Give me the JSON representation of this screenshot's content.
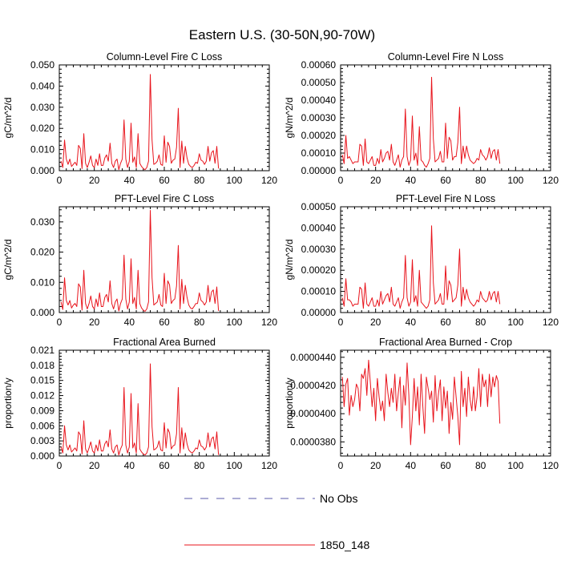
{
  "figure": {
    "title": "Eastern U.S. (30-50N,90-70W)",
    "legend": [
      {
        "label": "No Obs",
        "style": "dashed",
        "color": "#5a5aa8"
      },
      {
        "label": "1850_148",
        "style": "solid",
        "color": "#e8141c"
      }
    ]
  },
  "chart_data": [
    {
      "type": "line",
      "title": "Column-Level Fire C Loss",
      "ylabel": "gC/m^2/d",
      "xlim": [
        0,
        120
      ],
      "ylim": [
        0,
        0.05
      ],
      "xticks": [
        "0",
        "20",
        "40",
        "60",
        "80",
        "100",
        "120"
      ],
      "yticks": [
        "0.000",
        "0.010",
        "0.020",
        "0.030",
        "0.040",
        "0.050"
      ],
      "series": [
        {
          "color": "#e8141c",
          "values": [
            0.0045,
            0.0015,
            0.0145,
            0.0055,
            0.003,
            0.0055,
            0.002,
            0.003,
            0.004,
            0.0025,
            0.012,
            0.0105,
            0.001,
            0.0175,
            0.0035,
            0.0015,
            0.004,
            0.007,
            0.0025,
            0.0015,
            0.0055,
            0.0025,
            0.008,
            0.0025,
            0.0025,
            0.006,
            0.0075,
            0.0045,
            0.013,
            0.0035,
            0.0015,
            0.0045,
            0.0055,
            0.0005,
            0.0035,
            0.0055,
            0.024,
            0.0055,
            0.0015,
            0.0045,
            0.0225,
            0.004,
            0.0065,
            0.0015,
            0.0175,
            0.0035,
            0.002,
            0.001,
            0.0005,
            0.0015,
            0.0045,
            0.0455,
            0.0145,
            0.003,
            0.0035,
            0.0045,
            0.0075,
            0.003,
            0.0025,
            0.0165,
            0.004,
            0.0135,
            0.0115,
            0.0035,
            0.005,
            0.0055,
            0.011,
            0.0295,
            0.0015,
            0.014,
            0.0035,
            0.0115,
            0.006,
            0.003,
            0.002,
            0.0015,
            0.0025,
            0.004,
            0.0035,
            0.008,
            0.005,
            0.0045,
            0.003,
            0.0045,
            0.0115,
            0.0045,
            0.0085,
            0.0095,
            0.0035,
            0.0115,
            0.001
          ]
        }
      ]
    },
    {
      "type": "line",
      "title": "Column-Level Fire N Loss",
      "ylabel": "gN/m^2/d",
      "xlim": [
        0,
        120
      ],
      "ylim": [
        0,
        0.0006
      ],
      "xticks": [
        "0",
        "20",
        "40",
        "60",
        "80",
        "100",
        "120"
      ],
      "yticks": [
        "0.00000",
        "0.00010",
        "0.00020",
        "0.00030",
        "0.00040",
        "0.00050",
        "0.00060"
      ],
      "series": [
        {
          "color": "#e8141c",
          "values": [
            9e-05,
            4e-05,
            0.0002,
            7e-05,
            8e-05,
            6e-05,
            4e-05,
            5e-05,
            5e-05,
            5e-05,
            0.00015,
            0.00014,
            3e-05,
            0.00018,
            5e-05,
            4e-05,
            6e-05,
            8e-05,
            3e-05,
            3e-05,
            7e-05,
            4e-05,
            0.00012,
            5e-05,
            7e-05,
            0.0001,
            0.00011,
            6e-05,
            0.00015,
            5e-05,
            3e-05,
            6e-05,
            9e-05,
            2e-05,
            6e-05,
            8e-05,
            0.00035,
            8e-05,
            3e-05,
            6e-05,
            0.00031,
            6e-05,
            0.0001,
            3e-05,
            0.00025,
            6e-05,
            5e-05,
            3e-05,
            2e-05,
            4e-05,
            7e-05,
            0.00053,
            0.00018,
            5e-05,
            6e-05,
            7e-05,
            0.00011,
            5e-05,
            5e-05,
            0.00027,
            7e-05,
            0.00019,
            0.00017,
            6e-05,
            8e-05,
            8e-05,
            0.00016,
            0.00036,
            4e-05,
            0.00014,
            7e-05,
            0.00014,
            9e-05,
            6e-05,
            5e-05,
            4e-05,
            5e-05,
            7e-05,
            6e-05,
            0.00012,
            9e-05,
            8e-05,
            6e-05,
            8e-05,
            0.00013,
            7e-05,
            0.00011,
            0.00012,
            6e-05,
            0.00012,
            4e-05
          ]
        }
      ]
    },
    {
      "type": "line",
      "title": "PFT-Level Fire C Loss",
      "ylabel": "gC/m^2/d",
      "xlim": [
        0,
        120
      ],
      "ylim": [
        0,
        0.035
      ],
      "xticks": [
        "0",
        "20",
        "40",
        "60",
        "80",
        "100",
        "120"
      ],
      "yticks": [
        "0.000",
        "0.010",
        "0.020",
        "0.030"
      ],
      "series": [
        {
          "color": "#e8141c",
          "values": [
            0.0035,
            0.001,
            0.0115,
            0.004,
            0.0025,
            0.004,
            0.0015,
            0.0025,
            0.003,
            0.002,
            0.0095,
            0.0085,
            0.0008,
            0.014,
            0.003,
            0.0012,
            0.003,
            0.0055,
            0.002,
            0.0012,
            0.0045,
            0.002,
            0.0065,
            0.002,
            0.002,
            0.005,
            0.006,
            0.0035,
            0.0105,
            0.003,
            0.0012,
            0.0035,
            0.0045,
            0.0005,
            0.003,
            0.0045,
            0.019,
            0.0045,
            0.0012,
            0.0035,
            0.0178,
            0.003,
            0.005,
            0.0012,
            0.014,
            0.003,
            0.0015,
            0.0008,
            0.0004,
            0.0012,
            0.0035,
            0.0338,
            0.0115,
            0.0025,
            0.003,
            0.0035,
            0.006,
            0.0025,
            0.002,
            0.013,
            0.003,
            0.0105,
            0.0092,
            0.003,
            0.004,
            0.0045,
            0.0088,
            0.0222,
            0.0012,
            0.011,
            0.003,
            0.009,
            0.005,
            0.0025,
            0.0015,
            0.0012,
            0.002,
            0.003,
            0.003,
            0.0065,
            0.004,
            0.0035,
            0.0025,
            0.0035,
            0.009,
            0.0035,
            0.0068,
            0.0075,
            0.003,
            0.0085,
            0.0005
          ]
        }
      ]
    },
    {
      "type": "line",
      "title": "PFT-Level Fire N Loss",
      "ylabel": "gN/m^2/d",
      "xlim": [
        0,
        120
      ],
      "ylim": [
        0,
        0.0005
      ],
      "xticks": [
        "0",
        "20",
        "40",
        "60",
        "80",
        "100",
        "120"
      ],
      "yticks": [
        "0.00000",
        "0.00010",
        "0.00020",
        "0.00030",
        "0.00040",
        "0.00050"
      ],
      "series": [
        {
          "color": "#e8141c",
          "values": [
            7e-05,
            3e-05,
            0.00016,
            6e-05,
            6e-05,
            5e-05,
            3e-05,
            4e-05,
            4e-05,
            4e-05,
            0.00012,
            0.00011,
            2e-05,
            0.00014,
            4e-05,
            3e-05,
            5e-05,
            7e-05,
            3e-05,
            3e-05,
            6e-05,
            3e-05,
            0.0001,
            4e-05,
            6e-05,
            8e-05,
            9e-05,
            5e-05,
            0.00012,
            4e-05,
            3e-05,
            5e-05,
            7e-05,
            2e-05,
            5e-05,
            7e-05,
            0.00027,
            7e-05,
            3e-05,
            5e-05,
            0.00025,
            5e-05,
            8e-05,
            3e-05,
            0.0002,
            5e-05,
            4e-05,
            3e-05,
            2e-05,
            3e-05,
            6e-05,
            0.00041,
            0.00014,
            4e-05,
            5e-05,
            6e-05,
            9e-05,
            4e-05,
            4e-05,
            0.00022,
            6e-05,
            0.00015,
            0.00013,
            5e-05,
            6e-05,
            7e-05,
            0.00013,
            0.0003,
            3e-05,
            0.00012,
            6e-05,
            0.00011,
            7e-05,
            5e-05,
            4e-05,
            3e-05,
            4e-05,
            6e-05,
            5e-05,
            0.0001,
            7e-05,
            6e-05,
            5e-05,
            6e-05,
            0.0001,
            6e-05,
            9e-05,
            0.0001,
            5e-05,
            0.0001,
            4e-05
          ]
        }
      ]
    },
    {
      "type": "line",
      "title": "Fractional Area Burned",
      "ylabel": "proportion/y",
      "xlim": [
        0,
        120
      ],
      "ylim": [
        0,
        0.021
      ],
      "xticks": [
        "0",
        "20",
        "40",
        "60",
        "80",
        "100",
        "120"
      ],
      "yticks": [
        "0.000",
        "0.003",
        "0.006",
        "0.009",
        "0.012",
        "0.015",
        "0.018",
        "0.021"
      ],
      "series": [
        {
          "color": "#e8141c",
          "values": [
            0.0018,
            0.0006,
            0.006,
            0.0022,
            0.0012,
            0.0022,
            0.0008,
            0.0012,
            0.0016,
            0.001,
            0.0048,
            0.0042,
            0.0004,
            0.007,
            0.0014,
            0.0006,
            0.0016,
            0.0028,
            0.001,
            0.0006,
            0.0022,
            0.001,
            0.0032,
            0.001,
            0.001,
            0.0024,
            0.003,
            0.0018,
            0.0052,
            0.0014,
            0.0006,
            0.0018,
            0.0022,
            0.0002,
            0.0014,
            0.0022,
            0.0136,
            0.0022,
            0.0006,
            0.0018,
            0.0124,
            0.0016,
            0.0026,
            0.0006,
            0.0104,
            0.0014,
            0.0008,
            0.0004,
            0.0002,
            0.0006,
            0.0018,
            0.0183,
            0.0058,
            0.0012,
            0.0014,
            0.0018,
            0.003,
            0.0012,
            0.001,
            0.0066,
            0.0016,
            0.0054,
            0.0046,
            0.0014,
            0.002,
            0.0022,
            0.0044,
            0.0136,
            0.0006,
            0.0056,
            0.0014,
            0.0046,
            0.0024,
            0.0012,
            0.0008,
            0.0006,
            0.001,
            0.0016,
            0.0014,
            0.0032,
            0.002,
            0.0018,
            0.0012,
            0.0018,
            0.0046,
            0.0018,
            0.0034,
            0.0038,
            0.0014,
            0.0048,
            0.0002
          ]
        }
      ]
    },
    {
      "type": "line",
      "title": "Fractional Area Burned - Crop",
      "ylabel": "proportion/y",
      "xlim": [
        0,
        120
      ],
      "ylim": [
        3.7e-05,
        4.45e-05
      ],
      "xticks": [
        "0",
        "20",
        "40",
        "60",
        "80",
        "100",
        "120"
      ],
      "yticks": [
        "0.0000380",
        "0.0000400",
        "0.0000420",
        "0.0000440"
      ],
      "ytick_values": [
        3.8e-05,
        4e-05,
        4.2e-05,
        4.4e-05
      ],
      "series": [
        {
          "color": "#e8141c",
          "values": [
            4.26e-05,
            4.05e-05,
            4.21e-05,
            4.25e-05,
            3.99e-05,
            4.13e-05,
            4.05e-05,
            4.1e-05,
            4.21e-05,
            4.18e-05,
            4.02e-05,
            4.28e-05,
            4.25e-05,
            4.32e-05,
            4.13e-05,
            4.38e-05,
            4.22e-05,
            4.05e-05,
            4.18e-05,
            3.95e-05,
            4.25e-05,
            4.12e-05,
            4.02e-05,
            4.09e-05,
            3.95e-05,
            4.28e-05,
            4.15e-05,
            4.05e-05,
            4.18e-05,
            4.08e-05,
            4.28e-05,
            4.02e-05,
            4.15e-05,
            4.26e-05,
            3.9e-05,
            4.2e-05,
            4.06e-05,
            4.36e-05,
            4.13e-05,
            3.78e-05,
            3.98e-05,
            4.25e-05,
            4.02e-05,
            4.19e-05,
            3.92e-05,
            4.28e-05,
            4.05e-05,
            3.86e-05,
            4.26e-05,
            4.18e-05,
            4.1e-05,
            4.16e-05,
            3.94e-05,
            4.27e-05,
            4.02e-05,
            4.15e-05,
            4.24e-05,
            3.95e-05,
            4.19e-05,
            4.04e-05,
            4.16e-05,
            3.86e-05,
            4.08e-05,
            3.96e-05,
            4.26e-05,
            4.12e-05,
            3.98e-05,
            3.78e-05,
            4.3e-05,
            4.05e-05,
            4.18e-05,
            3.98e-05,
            4.26e-05,
            4.1e-05,
            4.02e-05,
            4.19e-05,
            4.02e-05,
            4.12e-05,
            4.32e-05,
            4.05e-05,
            4.28e-05,
            4.19e-05,
            4.24e-05,
            4.05e-05,
            4.28e-05,
            4.12e-05,
            4.26e-05,
            4.19e-05,
            4.27e-05,
            4.23e-05,
            3.93e-05
          ]
        }
      ]
    }
  ]
}
